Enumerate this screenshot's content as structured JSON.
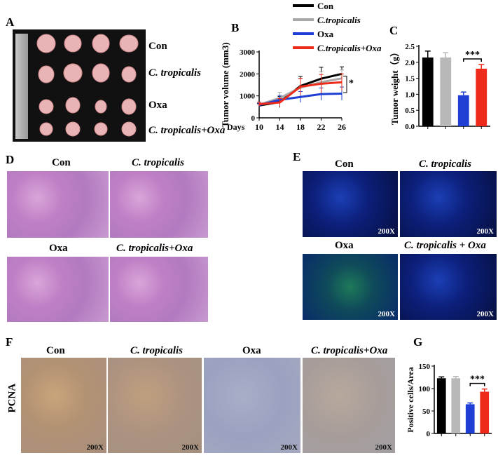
{
  "panels": {
    "A": {
      "letter": "A",
      "groups": [
        "Con",
        "C. tropicalis",
        "Oxa",
        "C. tropicalis+Oxa"
      ]
    },
    "B": {
      "letter": "B"
    },
    "C": {
      "letter": "C"
    },
    "D": {
      "letter": "D",
      "labels": [
        "Con",
        "C. tropicalis",
        "Oxa",
        "C. tropicalis+Oxa"
      ]
    },
    "E": {
      "letter": "E",
      "labels": [
        "Con",
        "C. tropicalis",
        "Oxa",
        "C. tropicalis + Oxa"
      ],
      "magnification": "200X"
    },
    "F": {
      "letter": "F",
      "labels": [
        "Con",
        "C. tropicalis",
        "Oxa",
        "C. tropicalis+Oxa"
      ],
      "row_label": "PCNA",
      "magnification": "200X"
    },
    "G": {
      "letter": "G"
    }
  },
  "chart_data": [
    {
      "id": "B",
      "type": "line",
      "xlabel": "Days",
      "ylabel": "Tumor volume (mm3)",
      "x": [
        10,
        14,
        18,
        22,
        26
      ],
      "ylim": [
        0,
        3000
      ],
      "yticks": [
        0,
        1000,
        2000,
        3000
      ],
      "series": [
        {
          "name": "Con",
          "color": "#000000",
          "values": [
            560,
            720,
            1450,
            1780,
            2000
          ],
          "err": [
            80,
            250,
            430,
            520,
            320
          ]
        },
        {
          "name": "C.tropicalis",
          "color": "#a8a8a8",
          "values": [
            600,
            900,
            1380,
            1620,
            1800
          ],
          "err": [
            90,
            260,
            400,
            470,
            380
          ]
        },
        {
          "name": "Oxa",
          "color": "#1f3fd4",
          "values": [
            580,
            820,
            950,
            1080,
            1100
          ],
          "err": [
            80,
            200,
            250,
            280,
            300
          ]
        },
        {
          "name": "C.tropicalis+Oxa",
          "color": "#ee2a1b",
          "values": [
            620,
            700,
            1420,
            1550,
            1620
          ],
          "err": [
            90,
            180,
            380,
            420,
            380
          ]
        }
      ],
      "annotation": "*"
    },
    {
      "id": "C",
      "type": "bar",
      "ylabel": "Tumor weight（g）",
      "categories": [
        "Con",
        "C.tropicalis",
        "Oxa",
        "C.tropicalis+Oxa"
      ],
      "values": [
        2.15,
        2.15,
        0.97,
        1.8
      ],
      "err": [
        0.2,
        0.15,
        0.1,
        0.13
      ],
      "colors": [
        "#000000",
        "#b8b8b8",
        "#1f3fd4",
        "#ee2a1b"
      ],
      "ylim": [
        0,
        2.5
      ],
      "yticks": [
        "0.0",
        "0.5",
        "1.0",
        "1.5",
        "2.0",
        "2.5"
      ],
      "annotation": "***"
    },
    {
      "id": "G",
      "type": "bar",
      "ylabel": "Positive cells/Area",
      "categories": [
        "Con",
        "C. tropicalis",
        "Oxa",
        "C. tropicalis+Oxa"
      ],
      "values": [
        123,
        123,
        65,
        93
      ],
      "err": [
        3,
        4,
        3,
        6
      ],
      "colors": [
        "#000000",
        "#b8b8b8",
        "#1f3fd4",
        "#ee2a1b"
      ],
      "ylim": [
        0,
        150
      ],
      "yticks": [
        "0",
        "50",
        "100",
        "150"
      ],
      "annotation": "***"
    }
  ]
}
